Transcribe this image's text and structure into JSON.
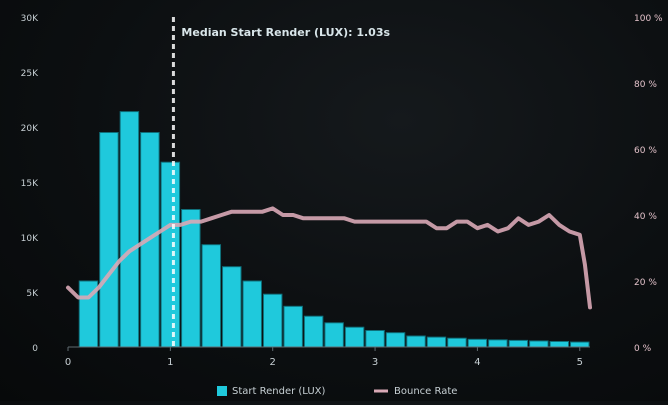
{
  "chart_data": {
    "type": "bar",
    "x_ticks": [
      "0",
      "1",
      "2",
      "3",
      "4",
      "5"
    ],
    "x_range": [
      0,
      5.1
    ],
    "left_axis": {
      "ticks": [
        "0",
        "5K",
        "10K",
        "15K",
        "20K",
        "25K",
        "30K"
      ],
      "range": [
        0,
        30000
      ]
    },
    "right_axis": {
      "ticks": [
        "0 %",
        "20 %",
        "40 %",
        "60 %",
        "80 %",
        "100 %"
      ],
      "range": [
        0,
        100
      ]
    },
    "bin_width": 0.2,
    "series": [
      {
        "name": "Start Render (LUX)",
        "kind": "bar",
        "color": "#1fc9dc",
        "axis": "left",
        "x_start": [
          0.1,
          0.3,
          0.5,
          0.7,
          0.9,
          1.1,
          1.3,
          1.5,
          1.7,
          1.9,
          2.1,
          2.3,
          2.5,
          2.7,
          2.9,
          3.1,
          3.3,
          3.5,
          3.7,
          3.9,
          4.1,
          4.3,
          4.5,
          4.7,
          4.9
        ],
        "values": [
          6000,
          19500,
          21400,
          19500,
          16800,
          12500,
          9300,
          7300,
          6000,
          4800,
          3700,
          2800,
          2200,
          1800,
          1500,
          1300,
          1000,
          900,
          800,
          700,
          650,
          600,
          550,
          500,
          450
        ]
      },
      {
        "name": "Bounce Rate",
        "kind": "line",
        "color": "#d9a9b6",
        "axis": "right",
        "x": [
          0.0,
          0.1,
          0.2,
          0.3,
          0.4,
          0.5,
          0.6,
          0.7,
          0.8,
          0.9,
          1.0,
          1.1,
          1.2,
          1.3,
          1.4,
          1.5,
          1.6,
          1.7,
          1.8,
          1.9,
          2.0,
          2.1,
          2.2,
          2.3,
          2.4,
          2.5,
          2.6,
          2.7,
          2.8,
          2.9,
          3.0,
          3.1,
          3.2,
          3.3,
          3.4,
          3.5,
          3.6,
          3.7,
          3.8,
          3.9,
          4.0,
          4.1,
          4.2,
          4.3,
          4.4,
          4.5,
          4.6,
          4.7,
          4.8,
          4.9,
          5.0,
          5.05,
          5.1
        ],
        "values": [
          18,
          15,
          15,
          18,
          22,
          26,
          29,
          31,
          33,
          35,
          37,
          37,
          38,
          38,
          39,
          40,
          41,
          41,
          41,
          41,
          42,
          40,
          40,
          39,
          39,
          39,
          39,
          39,
          38,
          38,
          38,
          38,
          38,
          38,
          38,
          38,
          36,
          36,
          38,
          38,
          36,
          37,
          35,
          36,
          39,
          37,
          38,
          40,
          37,
          35,
          34,
          25,
          12
        ]
      }
    ],
    "annotation": {
      "label": "Median Start Render (LUX): 1.03s",
      "x": 1.03
    },
    "legend": [
      "Start Render (LUX)",
      "Bounce Rate"
    ],
    "grid": false,
    "legend_position": "bottom",
    "colors": {
      "bar": "#1fc9dc",
      "line": "#d9a9b6",
      "text": "#c6cfd3",
      "right_axis_text": "#e2c1c9"
    }
  }
}
